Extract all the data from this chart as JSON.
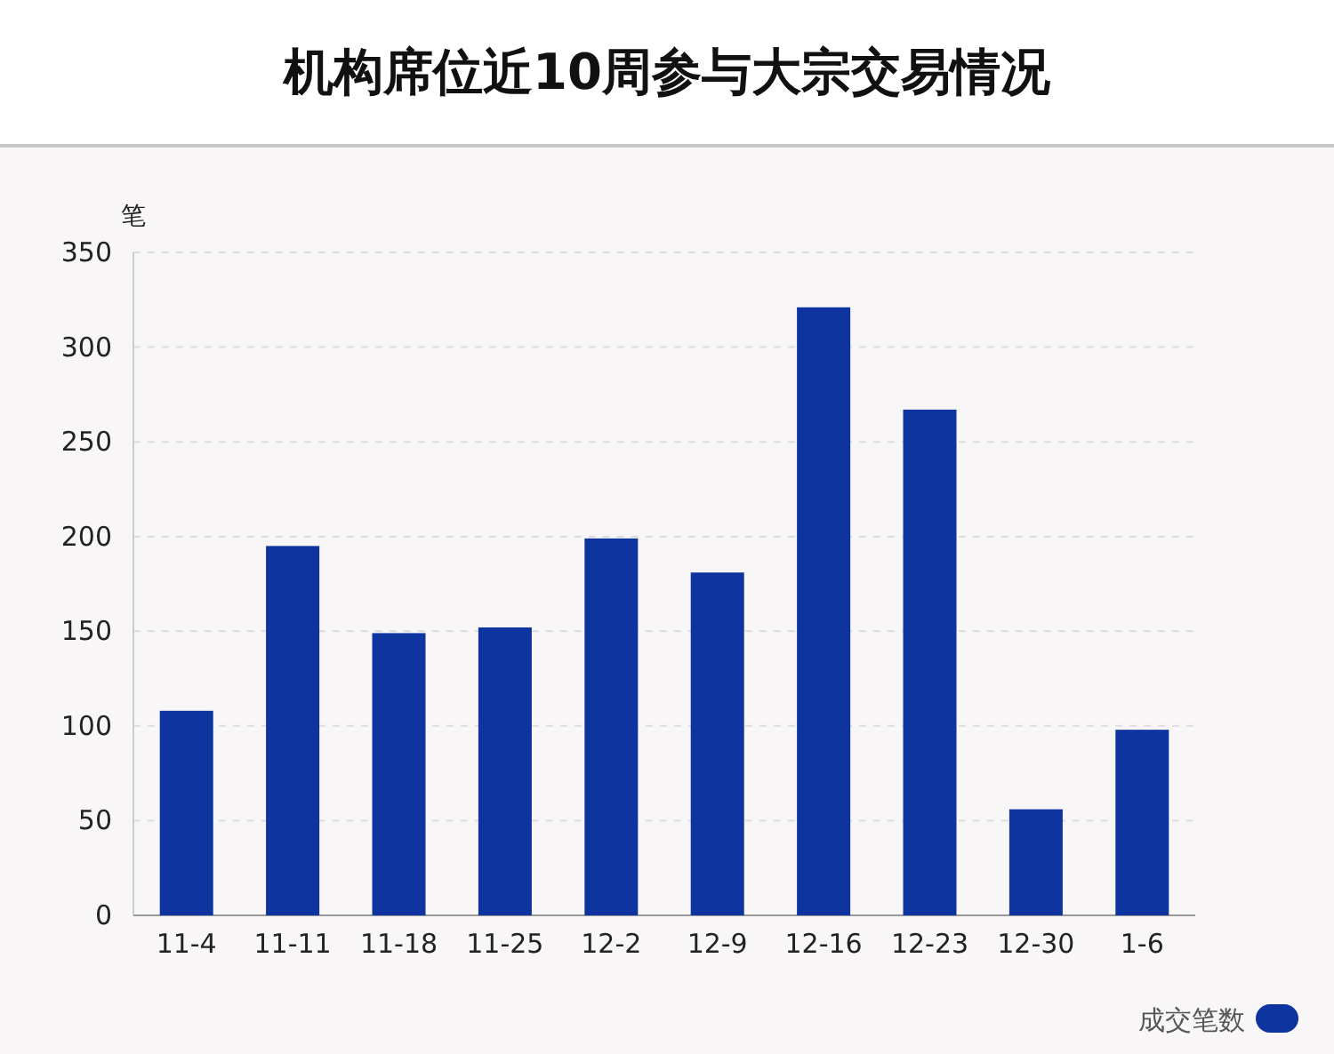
{
  "chart_data": {
    "type": "bar",
    "title": "机构席位近10周参与大宗交易情况",
    "ylabel": "笔",
    "categories": [
      "11-4",
      "11-11",
      "11-18",
      "11-25",
      "12-2",
      "12-9",
      "12-16",
      "12-23",
      "12-30",
      "1-6"
    ],
    "series": [
      {
        "name": "成交笔数",
        "color": "#0e34a0",
        "values": [
          108,
          195,
          149,
          152,
          199,
          181,
          321,
          267,
          56,
          98
        ]
      }
    ],
    "ylim": [
      0,
      350
    ],
    "yticks": [
      0,
      50,
      100,
      150,
      200,
      250,
      300,
      350
    ],
    "grid": "y",
    "legend": "bottom right"
  }
}
